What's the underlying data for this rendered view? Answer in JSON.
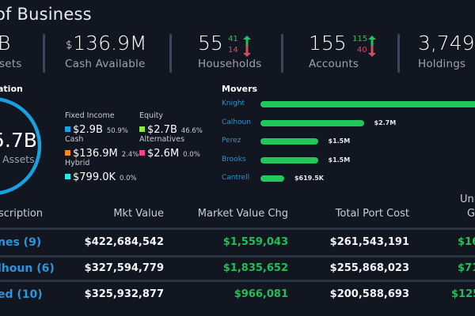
{
  "header": {
    "title": "of Business"
  },
  "kpis": {
    "total_assets": {
      "value": "B",
      "label": "sets"
    },
    "cash": {
      "currency": "$",
      "value": "136.9M",
      "label": "Cash Available"
    },
    "households": {
      "value": "55",
      "label": "Households",
      "up": "41",
      "down": "14"
    },
    "accounts": {
      "value": "155",
      "label": "Accounts",
      "up": "115",
      "down": "40"
    },
    "holdings": {
      "value": "3,749",
      "label": "Holdings"
    }
  },
  "allocation": {
    "title": "ation",
    "center_value": "5.7B",
    "center_label": "Assets",
    "items": [
      {
        "name": "Fixed Income",
        "value": "$2.9B",
        "pct": "50.9%",
        "color": "#1a9fdf"
      },
      {
        "name": "Equity",
        "value": "$2.7B",
        "pct": "46.6%",
        "color": "#8ee64a"
      },
      {
        "name": "Cash",
        "value": "$136.9M",
        "pct": "2.4%",
        "color": "#f08b2c"
      },
      {
        "name": "Alternatives",
        "value": "$2.6M",
        "pct": "0.0%",
        "color": "#e8478f"
      },
      {
        "name": "Hybrid",
        "value": "$799.0K",
        "pct": "0.0%",
        "color": "#2fe6e6"
      }
    ],
    "ring": [
      {
        "name": "Fixed Income",
        "fraction": 0.509,
        "color": "#1a9fdf"
      },
      {
        "name": "Cash",
        "fraction": 0.024,
        "color": "#f08b2c"
      },
      {
        "name": "Equity",
        "fraction": 0.466,
        "color": "#8ee64a"
      }
    ]
  },
  "movers": {
    "title": "Movers",
    "items": [
      {
        "name": "Knight",
        "label": "",
        "value_m": 6.0
      },
      {
        "name": "Calhoun",
        "label": "$2.7M",
        "value_m": 2.7
      },
      {
        "name": "Perez",
        "label": "$1.5M",
        "value_m": 1.5
      },
      {
        "name": "Brooks",
        "label": "$1.5M",
        "value_m": 1.5
      },
      {
        "name": "Cantrell",
        "label": "$619.5K",
        "value_m": 0.6195
      }
    ]
  },
  "table": {
    "headers": {
      "description": "scription",
      "mkt_value": "Mkt Value",
      "mkt_value_chg": "Market Value Chg",
      "total_port_cost": "Total Port Cost",
      "unrealized_line1": "Unr",
      "unrealized_line2": "Ga"
    },
    "rows": [
      {
        "description": "nes (9)",
        "mkt_value": "$422,684,542",
        "mkt_value_chg": "$1,559,043",
        "total_port_cost": "$261,543,191",
        "unrealized": "$16"
      },
      {
        "description": "lhoun (6)",
        "mkt_value": "$327,594,779",
        "mkt_value_chg": "$1,835,652",
        "total_port_cost": "$255,868,023",
        "unrealized": "$71"
      },
      {
        "description": "ed (10)",
        "mkt_value": "$325,932,877",
        "mkt_value_chg": "$966,081",
        "total_port_cost": "$200,588,693",
        "unrealized": "$125,"
      }
    ]
  }
}
